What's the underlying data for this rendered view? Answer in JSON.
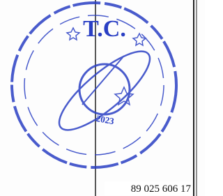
{
  "stamp": {
    "center_text": "T.C.",
    "year": "2023"
  },
  "cell": {
    "number": "89 025 606 17"
  }
}
